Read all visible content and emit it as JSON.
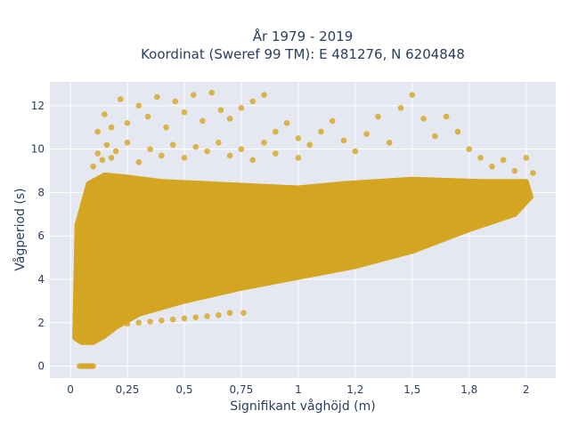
{
  "chart_data": {
    "type": "scatter",
    "title_line1": "År 1979 - 2019",
    "title_line2": "Koordinat (Sweref 99 TM): E 481276, N 6204848",
    "xlabel": "Signifikant våghöjd (m)",
    "ylabel": "Vågperiod (s)",
    "xlim": [
      -0.09,
      2.13
    ],
    "ylim": [
      -0.55,
      13.1
    ],
    "x_ticks": [
      0,
      0.25,
      0.5,
      0.75,
      1,
      1.25,
      1.5,
      1.75,
      2
    ],
    "x_tick_labels": [
      "0",
      "0,25",
      "0,5",
      "0,75",
      "1",
      "1,2",
      "1,5",
      "1,8",
      "2"
    ],
    "y_ticks": [
      0,
      2,
      4,
      6,
      8,
      10,
      12
    ],
    "y_tick_labels": [
      "0",
      "2",
      "4",
      "6",
      "8",
      "10",
      "12"
    ],
    "grid": true,
    "legend": "none",
    "colors": {
      "marker": "#d4a520",
      "plot_bg": "#e5e8f1",
      "grid": "#ffffff",
      "text": "#2a3f5f"
    },
    "dense_region": {
      "description_points_x": [
        0.02,
        0.05,
        0.1,
        0.15,
        0.2,
        0.3,
        0.5,
        0.75,
        1.0,
        1.25,
        1.5,
        1.75,
        1.95,
        2.02,
        2.0,
        1.8,
        1.5,
        1.2,
        1.0,
        0.8,
        0.6,
        0.4,
        0.25,
        0.15,
        0.08,
        0.03
      ],
      "description_points_y": [
        1.3,
        1.1,
        1.1,
        1.4,
        1.8,
        2.4,
        3.0,
        3.6,
        4.1,
        4.6,
        5.3,
        6.3,
        7.0,
        7.8,
        8.5,
        8.5,
        8.6,
        8.4,
        8.2,
        8.3,
        8.4,
        8.5,
        8.7,
        8.8,
        8.4,
        6.5
      ]
    },
    "point_groups": [
      {
        "x": [
          0.04,
          0.05,
          0.06,
          0.07,
          0.08,
          0.09,
          0.1
        ],
        "y": [
          0,
          0,
          0,
          0,
          0,
          0,
          0
        ]
      },
      {
        "x": [
          0.1,
          0.15,
          0.2,
          0.25,
          0.3,
          0.35,
          0.4,
          0.45,
          0.5,
          0.55,
          0.6,
          0.65,
          0.7,
          0.76
        ],
        "y": [
          1.55,
          1.75,
          1.85,
          1.95,
          2.0,
          2.05,
          2.1,
          2.15,
          2.2,
          2.25,
          2.3,
          2.35,
          2.45,
          2.45
        ]
      },
      {
        "x": [
          0.12,
          0.15,
          0.18,
          0.22,
          0.25,
          0.3,
          0.34,
          0.38,
          0.42,
          0.46,
          0.5,
          0.54,
          0.58,
          0.62,
          0.66,
          0.7,
          0.75,
          0.8,
          0.85
        ],
        "y": [
          10.8,
          11.6,
          11.0,
          12.3,
          11.2,
          12.0,
          11.5,
          12.4,
          11.0,
          12.2,
          11.7,
          12.5,
          11.3,
          12.6,
          11.8,
          11.4,
          11.9,
          12.2,
          12.5
        ]
      },
      {
        "x": [
          0.85,
          0.9,
          0.95,
          1.0,
          1.05,
          1.1,
          1.15,
          1.2,
          1.25,
          1.3,
          1.35,
          1.4,
          1.45,
          1.5,
          1.55,
          1.6,
          1.65,
          1.7,
          1.75,
          1.8,
          1.85,
          1.9,
          1.95,
          2.0,
          2.03
        ],
        "y": [
          10.3,
          10.8,
          11.2,
          10.5,
          10.2,
          10.8,
          11.3,
          10.4,
          9.9,
          10.7,
          11.5,
          10.3,
          11.9,
          12.5,
          11.4,
          10.6,
          11.5,
          10.8,
          10.0,
          9.6,
          9.2,
          9.5,
          9.0,
          9.6,
          8.9
        ]
      },
      {
        "x": [
          0.1,
          0.12,
          0.14,
          0.16,
          0.18,
          0.2,
          0.25,
          0.3,
          0.35,
          0.4,
          0.45,
          0.5,
          0.55,
          0.6,
          0.65,
          0.7,
          0.75,
          0.8,
          0.9,
          1.0
        ],
        "y": [
          9.2,
          9.8,
          9.5,
          10.2,
          9.6,
          9.9,
          10.3,
          9.4,
          10.0,
          9.7,
          10.2,
          9.6,
          10.1,
          9.9,
          10.3,
          9.7,
          10.0,
          9.5,
          9.8,
          9.6
        ]
      }
    ]
  }
}
